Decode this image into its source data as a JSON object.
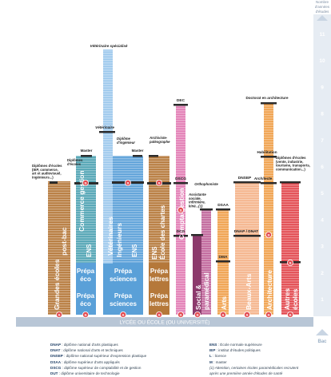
{
  "side_axis": {
    "title_line1": "Nombre",
    "title_line2": "d'années",
    "title_line3": "d'études",
    "levels": [
      "1",
      "2",
      "3",
      "4",
      "5",
      "6",
      "7",
      "8",
      "9",
      "10",
      "11"
    ],
    "bottom_label": "Bac"
  },
  "base_band": "LYCÉE OU ÉCOLE (OU UNIVERSITÉ)",
  "columns": {
    "grandes_ecoles": {
      "label_line1": "Grandes écoles",
      "label_line2": "post-bac",
      "top_label": "Diplômes d'écoles (IEP, commerce, art et audiovisuel, ingénieurs...)"
    },
    "commerce": {
      "label": "Commerce gestion",
      "ens": "ENS",
      "prepa_line1": "Prépa",
      "prepa_line2": "éco",
      "top_master": "Master",
      "top_ecoles": "Diplômes d'écoles"
    },
    "veterinaires": {
      "label_line1": "Vétérinaires",
      "label_line2": "Ingénieurs",
      "ens": "ENS",
      "prepa_line1": "Prépa",
      "prepa_line2": "sciences",
      "top_vet_spec": "Vétérinaire spécialisé",
      "top_vet": "Vétérinaire",
      "top_ing": "Diplôme d'ingénieur",
      "top_master": "Master"
    },
    "chartes": {
      "label": "École des chartes",
      "ens": "ENS",
      "prepa_line1": "Prépa",
      "prepa_line2": "lettres",
      "top_label": "Archiviste-paléographe"
    },
    "compta": {
      "label": "Compta-gestion",
      "dec": "DEC",
      "dscg": "DSCG",
      "dcg": "DCG"
    },
    "social": {
      "label_line1": "Social &",
      "label_line2": "paramédical",
      "top_assist": "Assistante sociale, infirmière, kiné...(1)",
      "top_ortho": "Orthophoniste"
    },
    "arts": {
      "label": "Arts",
      "dsaa": "DSAA",
      "dma": "DMA"
    },
    "beaux_arts": {
      "label": "Beaux-Arts",
      "dnsep": "DNSEP",
      "dnap": "DNAP / DNAT"
    },
    "architecture": {
      "label": "Architecture",
      "top_doctorat": "Doctorat en architecture",
      "habilitation": "Habilitation",
      "architecte": "Architecte"
    },
    "autres": {
      "label_line1": "Autres",
      "label_line2": "écoles",
      "top_label": "Diplômes d'écoles (vente, industrie, tourisme, transports, communication...)"
    }
  },
  "selection_mark": "S",
  "legend_left": [
    {
      "abbr": "DNAP",
      "text": "diplôme national d'arts plastiques"
    },
    {
      "abbr": "DNAT",
      "text": "diplôme national d'arts et techniques"
    },
    {
      "abbr": "DNSEP",
      "text": "diplôme national supérieur d'expression plastique"
    },
    {
      "abbr": "DSAA",
      "text": "diplôme supérieur d'arts appliqués"
    },
    {
      "abbr": "DSCG",
      "text": "diplôme supérieur de comptabilité et de gestion"
    },
    {
      "abbr": "DUT",
      "text": "diplôme universitaire de technologie"
    }
  ],
  "legend_right": [
    {
      "abbr": "ENS",
      "text": "École normale supérieure"
    },
    {
      "abbr": "IEP",
      "text": "institut d'études politiques"
    },
    {
      "abbr": "L",
      "text": "licence"
    },
    {
      "abbr": "M",
      "text": "master"
    },
    {
      "abbr": "",
      "text": "(1) Attention, certaines écoles paramédicales recrutent"
    },
    {
      "abbr": "",
      "text": "après une première année d'études de santé"
    }
  ],
  "colors": {
    "blue": "#5aa0d8",
    "blue_light": "#9cc8ec",
    "teal": "#4fa3b3",
    "brown": "#b5783a",
    "pink": "#e27cb4",
    "purple": "#8c3a6c",
    "mauve": "#c0649a",
    "orange": "#f0a04a",
    "peach": "#f5b38a",
    "red": "#e2474d",
    "base_band": "#b8c6d6",
    "axis": "#c9d5e3"
  }
}
